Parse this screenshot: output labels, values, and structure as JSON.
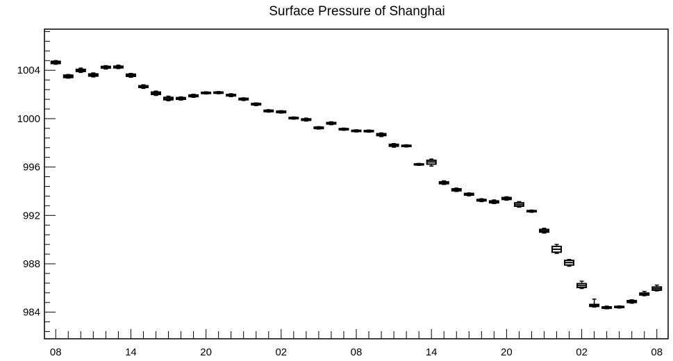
{
  "chart_data": {
    "type": "box",
    "title": "Surface Pressure of Shanghai",
    "xlabel": "",
    "ylabel": "",
    "ylim": [
      981.8,
      1007.4
    ],
    "yticks": [
      984,
      988,
      992,
      996,
      1000,
      1004
    ],
    "ytick_labels": [
      "984",
      "988",
      "992",
      "996",
      "1000",
      "1004"
    ],
    "x_unit": "hour index (0 = 08)",
    "xlim": [
      -0.9,
      48.9
    ],
    "xticks": [
      0,
      6,
      12,
      18,
      24,
      30,
      36,
      42,
      48
    ],
    "xtick_labels": [
      "08",
      "14",
      "20",
      "02",
      "08",
      "14",
      "20",
      "02",
      "08"
    ],
    "grid": false,
    "series": [
      {
        "values": [
          {
            "x": 0,
            "q1": 1004.56,
            "median": 1004.65,
            "q3": 1004.74,
            "min": 1004.5,
            "max": 1004.8
          },
          {
            "x": 1,
            "q1": 1003.4,
            "median": 1003.5,
            "q3": 1003.6,
            "min": 1003.35,
            "max": 1003.65
          },
          {
            "x": 2,
            "q1": 1003.9,
            "median": 1004.0,
            "q3": 1004.08,
            "min": 1003.82,
            "max": 1004.18
          },
          {
            "x": 3,
            "q1": 1003.52,
            "median": 1003.6,
            "q3": 1003.7,
            "min": 1003.45,
            "max": 1003.78
          },
          {
            "x": 4,
            "q1": 1004.18,
            "median": 1004.25,
            "q3": 1004.32,
            "min": 1004.1,
            "max": 1004.38
          },
          {
            "x": 5,
            "q1": 1004.2,
            "median": 1004.27,
            "q3": 1004.34,
            "min": 1004.14,
            "max": 1004.42
          },
          {
            "x": 6,
            "q1": 1003.5,
            "median": 1003.6,
            "q3": 1003.68,
            "min": 1003.42,
            "max": 1003.74
          },
          {
            "x": 7,
            "q1": 1002.58,
            "median": 1002.65,
            "q3": 1002.72,
            "min": 1002.5,
            "max": 1002.8
          },
          {
            "x": 8,
            "q1": 1002.0,
            "median": 1002.1,
            "q3": 1002.2,
            "min": 1001.92,
            "max": 1002.28
          },
          {
            "x": 9,
            "q1": 1001.56,
            "median": 1001.65,
            "q3": 1001.76,
            "min": 1001.48,
            "max": 1001.86
          },
          {
            "x": 10,
            "q1": 1001.6,
            "median": 1001.67,
            "q3": 1001.74,
            "min": 1001.54,
            "max": 1001.8
          },
          {
            "x": 11,
            "q1": 1001.82,
            "median": 1001.9,
            "q3": 1001.96,
            "min": 1001.76,
            "max": 1002.02
          },
          {
            "x": 12,
            "q1": 1002.08,
            "median": 1002.13,
            "q3": 1002.18,
            "min": 1002.04,
            "max": 1002.22
          },
          {
            "x": 13,
            "q1": 1002.1,
            "median": 1002.15,
            "q3": 1002.2,
            "min": 1002.06,
            "max": 1002.24
          },
          {
            "x": 14,
            "q1": 1001.88,
            "median": 1001.95,
            "q3": 1002.0,
            "min": 1001.82,
            "max": 1002.06
          },
          {
            "x": 15,
            "q1": 1001.56,
            "median": 1001.62,
            "q3": 1001.68,
            "min": 1001.5,
            "max": 1001.72
          },
          {
            "x": 16,
            "q1": 1001.14,
            "median": 1001.2,
            "q3": 1001.26,
            "min": 1001.08,
            "max": 1001.3
          },
          {
            "x": 17,
            "q1": 1000.58,
            "median": 1000.64,
            "q3": 1000.7,
            "min": 1000.54,
            "max": 1000.74
          },
          {
            "x": 18,
            "q1": 1000.5,
            "median": 1000.56,
            "q3": 1000.62,
            "min": 1000.46,
            "max": 1000.66
          },
          {
            "x": 19,
            "q1": 1000.0,
            "median": 1000.05,
            "q3": 1000.1,
            "min": 999.96,
            "max": 1000.14
          },
          {
            "x": 20,
            "q1": 999.86,
            "median": 999.93,
            "q3": 999.98,
            "min": 999.8,
            "max": 1000.04
          },
          {
            "x": 21,
            "q1": 999.18,
            "median": 999.24,
            "q3": 999.3,
            "min": 999.14,
            "max": 999.34
          },
          {
            "x": 22,
            "q1": 999.56,
            "median": 999.62,
            "q3": 999.68,
            "min": 999.5,
            "max": 999.74
          },
          {
            "x": 23,
            "q1": 999.08,
            "median": 999.13,
            "q3": 999.18,
            "min": 999.04,
            "max": 999.22
          },
          {
            "x": 24,
            "q1": 998.94,
            "median": 998.99,
            "q3": 999.04,
            "min": 998.9,
            "max": 999.08
          },
          {
            "x": 25,
            "q1": 998.92,
            "median": 998.97,
            "q3": 999.02,
            "min": 998.88,
            "max": 999.06
          },
          {
            "x": 26,
            "q1": 998.6,
            "median": 998.68,
            "q3": 998.76,
            "min": 998.52,
            "max": 998.82
          },
          {
            "x": 27,
            "q1": 997.72,
            "median": 997.8,
            "q3": 997.88,
            "min": 997.64,
            "max": 997.94
          },
          {
            "x": 28,
            "q1": 997.7,
            "median": 997.75,
            "q3": 997.8,
            "min": 997.66,
            "max": 997.84
          },
          {
            "x": 29,
            "q1": 996.18,
            "median": 996.22,
            "q3": 996.26,
            "min": 996.14,
            "max": 996.3
          },
          {
            "x": 30,
            "q1": 996.24,
            "median": 996.42,
            "q3": 996.56,
            "min": 996.08,
            "max": 996.66
          },
          {
            "x": 31,
            "q1": 994.62,
            "median": 994.7,
            "q3": 994.78,
            "min": 994.56,
            "max": 994.86
          },
          {
            "x": 32,
            "q1": 994.04,
            "median": 994.12,
            "q3": 994.2,
            "min": 993.98,
            "max": 994.26
          },
          {
            "x": 33,
            "q1": 993.68,
            "median": 993.75,
            "q3": 993.82,
            "min": 993.62,
            "max": 993.86
          },
          {
            "x": 34,
            "q1": 993.2,
            "median": 993.26,
            "q3": 993.32,
            "min": 993.14,
            "max": 993.38
          },
          {
            "x": 35,
            "q1": 993.04,
            "median": 993.12,
            "q3": 993.2,
            "min": 992.98,
            "max": 993.28
          },
          {
            "x": 36,
            "q1": 993.32,
            "median": 993.4,
            "q3": 993.48,
            "min": 993.26,
            "max": 993.54
          },
          {
            "x": 37,
            "q1": 992.76,
            "median": 992.9,
            "q3": 993.04,
            "min": 992.68,
            "max": 993.14
          },
          {
            "x": 38,
            "q1": 992.3,
            "median": 992.35,
            "q3": 992.4,
            "min": 992.26,
            "max": 992.44
          },
          {
            "x": 39,
            "q1": 990.62,
            "median": 990.72,
            "q3": 990.84,
            "min": 990.54,
            "max": 990.94
          },
          {
            "x": 40,
            "q1": 988.96,
            "median": 989.2,
            "q3": 989.44,
            "min": 988.86,
            "max": 989.6
          },
          {
            "x": 41,
            "q1": 987.9,
            "median": 988.1,
            "q3": 988.28,
            "min": 987.8,
            "max": 988.36
          },
          {
            "x": 42,
            "q1": 986.04,
            "median": 986.2,
            "q3": 986.36,
            "min": 985.96,
            "max": 986.56
          },
          {
            "x": 43,
            "q1": 984.48,
            "median": 984.56,
            "q3": 984.64,
            "min": 984.42,
            "max": 985.08
          },
          {
            "x": 44,
            "q1": 984.32,
            "median": 984.38,
            "q3": 984.44,
            "min": 984.28,
            "max": 984.5
          },
          {
            "x": 45,
            "q1": 984.38,
            "median": 984.43,
            "q3": 984.48,
            "min": 984.34,
            "max": 984.52
          },
          {
            "x": 46,
            "q1": 984.8,
            "median": 984.88,
            "q3": 984.96,
            "min": 984.74,
            "max": 985.02
          },
          {
            "x": 47,
            "q1": 985.42,
            "median": 985.5,
            "q3": 985.58,
            "min": 985.36,
            "max": 985.72
          },
          {
            "x": 48,
            "q1": 985.82,
            "median": 985.95,
            "q3": 986.08,
            "min": 985.76,
            "max": 986.24
          }
        ]
      }
    ]
  }
}
